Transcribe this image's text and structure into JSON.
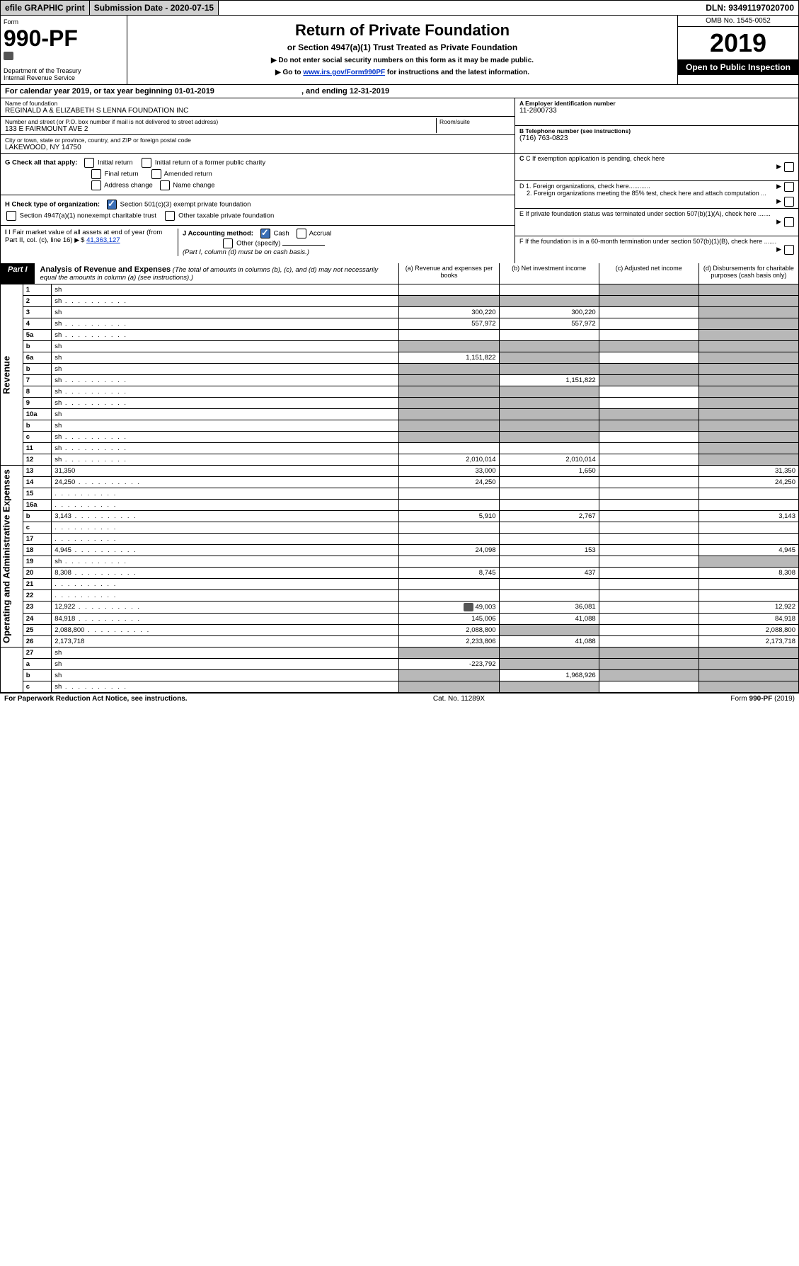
{
  "topbar": {
    "efile": "efile GRAPHIC print",
    "sub_label": "Submission Date - 2020-07-15",
    "dln": "DLN: 93491197020700"
  },
  "header": {
    "form_word": "Form",
    "form_no": "990-PF",
    "dept": "Department of the Treasury",
    "irs": "Internal Revenue Service",
    "title": "Return of Private Foundation",
    "subtitle": "or Section 4947(a)(1) Trust Treated as Private Foundation",
    "instr1": "▶ Do not enter social security numbers on this form as it may be made public.",
    "instr2_pre": "▶ Go to ",
    "instr2_link": "www.irs.gov/Form990PF",
    "instr2_post": " for instructions and the latest information.",
    "omb": "OMB No. 1545-0052",
    "year": "2019",
    "open": "Open to Public Inspection"
  },
  "calyear": {
    "pre": "For calendar year 2019, or tax year beginning ",
    "begin": "01-01-2019",
    "mid": " , and ending ",
    "end": "12-31-2019"
  },
  "id": {
    "name_label": "Name of foundation",
    "name": "REGINALD A & ELIZABETH S LENNA FOUNDATION INC",
    "addr_label": "Number and street (or P.O. box number if mail is not delivered to street address)",
    "room_label": "Room/suite",
    "addr": "133 E FAIRMOUNT AVE 2",
    "city_label": "City or town, state or province, country, and ZIP or foreign postal code",
    "city": "LAKEWOOD, NY  14750",
    "a_label": "A Employer identification number",
    "a_val": "11-2800733",
    "b_label": "B Telephone number (see instructions)",
    "b_val": "(716) 763-0823",
    "c_label": "C If exemption application is pending, check here",
    "d1": "D 1. Foreign organizations, check here............",
    "d2": "2. Foreign organizations meeting the 85% test, check here and attach computation ...",
    "e": "E   If private foundation status was terminated under section 507(b)(1)(A), check here .......",
    "f": "F   If the foundation is in a 60-month termination under section 507(b)(1)(B), check here .......",
    "g_label": "G Check all that apply:",
    "g_opts": [
      "Initial return",
      "Initial return of a former public charity",
      "Final return",
      "Amended return",
      "Address change",
      "Name change"
    ],
    "h_label": "H Check type of organization:",
    "h_opts": [
      "Section 501(c)(3) exempt private foundation",
      "Section 4947(a)(1) nonexempt charitable trust",
      "Other taxable private foundation"
    ],
    "i_label": "I Fair market value of all assets at end of year (from Part II, col. (c), line 16)",
    "i_val": "41,363,127",
    "j_label": "J Accounting method:",
    "j_opts": [
      "Cash",
      "Accrual",
      "Other (specify)"
    ],
    "j_note": "(Part I, column (d) must be on cash basis.)"
  },
  "part1": {
    "tag": "Part I",
    "title": "Analysis of Revenue and Expenses",
    "note": "(The total of amounts in columns (b), (c), and (d) may not necessarily equal the amounts in column (a) (see instructions).)",
    "cols": {
      "a": "(a)    Revenue and expenses per books",
      "b": "(b)   Net investment income",
      "c": "(c)   Adjusted net income",
      "d": "(d)   Disbursements for charitable purposes (cash basis only)"
    }
  },
  "rows": [
    {
      "sec": "rev",
      "n": "1",
      "d": "sh",
      "a": "",
      "b": "",
      "c": "sh"
    },
    {
      "sec": "rev",
      "n": "2",
      "d": "sh",
      "a": "sh",
      "b": "sh",
      "c": "sh",
      "dots": true
    },
    {
      "sec": "rev",
      "n": "3",
      "d": "sh",
      "a": "300,220",
      "b": "300,220",
      "c": ""
    },
    {
      "sec": "rev",
      "n": "4",
      "d": "sh",
      "a": "557,972",
      "b": "557,972",
      "c": "",
      "dots": true
    },
    {
      "sec": "rev",
      "n": "5a",
      "d": "sh",
      "a": "",
      "b": "",
      "c": "",
      "dots": true
    },
    {
      "sec": "rev",
      "n": "b",
      "d": "sh",
      "a": "sh",
      "b": "sh",
      "c": "sh"
    },
    {
      "sec": "rev",
      "n": "6a",
      "d": "sh",
      "a": "1,151,822",
      "b": "sh",
      "c": ""
    },
    {
      "sec": "rev",
      "n": "b",
      "d": "sh",
      "a": "sh",
      "b": "sh",
      "c": "sh"
    },
    {
      "sec": "rev",
      "n": "7",
      "d": "sh",
      "a": "sh",
      "b": "1,151,822",
      "c": "sh",
      "dots": true
    },
    {
      "sec": "rev",
      "n": "8",
      "d": "sh",
      "a": "sh",
      "b": "sh",
      "c": "",
      "dots": true
    },
    {
      "sec": "rev",
      "n": "9",
      "d": "sh",
      "a": "sh",
      "b": "sh",
      "c": "",
      "dots": true
    },
    {
      "sec": "rev",
      "n": "10a",
      "d": "sh",
      "a": "sh",
      "b": "sh",
      "c": "sh"
    },
    {
      "sec": "rev",
      "n": "b",
      "d": "sh",
      "a": "sh",
      "b": "sh",
      "c": "sh"
    },
    {
      "sec": "rev",
      "n": "c",
      "d": "sh",
      "a": "sh",
      "b": "sh",
      "c": "",
      "dots": true
    },
    {
      "sec": "rev",
      "n": "11",
      "d": "sh",
      "a": "",
      "b": "",
      "c": "",
      "dots": true
    },
    {
      "sec": "rev",
      "n": "12",
      "d": "sh",
      "a": "2,010,014",
      "b": "2,010,014",
      "c": "",
      "dots": true
    },
    {
      "sec": "exp",
      "n": "13",
      "d": "31,350",
      "a": "33,000",
      "b": "1,650",
      "c": ""
    },
    {
      "sec": "exp",
      "n": "14",
      "d": "24,250",
      "a": "24,250",
      "b": "",
      "c": "",
      "dots": true
    },
    {
      "sec": "exp",
      "n": "15",
      "d": "",
      "a": "",
      "b": "",
      "c": "",
      "dots": true
    },
    {
      "sec": "exp",
      "n": "16a",
      "d": "",
      "a": "",
      "b": "",
      "c": "",
      "dots": true
    },
    {
      "sec": "exp",
      "n": "b",
      "d": "3,143",
      "a": "5,910",
      "b": "2,767",
      "c": "",
      "dots": true
    },
    {
      "sec": "exp",
      "n": "c",
      "d": "",
      "a": "",
      "b": "",
      "c": "",
      "dots": true
    },
    {
      "sec": "exp",
      "n": "17",
      "d": "",
      "a": "",
      "b": "",
      "c": "",
      "dots": true
    },
    {
      "sec": "exp",
      "n": "18",
      "d": "4,945",
      "a": "24,098",
      "b": "153",
      "c": "",
      "dots": true
    },
    {
      "sec": "exp",
      "n": "19",
      "d": "sh",
      "a": "",
      "b": "",
      "c": "",
      "dots": true
    },
    {
      "sec": "exp",
      "n": "20",
      "d": "8,308",
      "a": "8,745",
      "b": "437",
      "c": "",
      "dots": true
    },
    {
      "sec": "exp",
      "n": "21",
      "d": "",
      "a": "",
      "b": "",
      "c": "",
      "dots": true
    },
    {
      "sec": "exp",
      "n": "22",
      "d": "",
      "a": "",
      "b": "",
      "c": "",
      "dots": true
    },
    {
      "sec": "exp",
      "n": "23",
      "d": "12,922",
      "a": "49,003",
      "b": "36,081",
      "c": "",
      "dots": true,
      "icon": true
    },
    {
      "sec": "exp",
      "n": "24",
      "d": "84,918",
      "a": "145,006",
      "b": "41,088",
      "c": "",
      "dots": true
    },
    {
      "sec": "exp",
      "n": "25",
      "d": "2,088,800",
      "a": "2,088,800",
      "b": "sh",
      "c": "",
      "dots": true
    },
    {
      "sec": "exp",
      "n": "26",
      "d": "2,173,718",
      "a": "2,233,806",
      "b": "41,088",
      "c": ""
    },
    {
      "sec": "net",
      "n": "27",
      "d": "sh",
      "a": "sh",
      "b": "sh",
      "c": "sh"
    },
    {
      "sec": "net",
      "n": "a",
      "d": "sh",
      "a": "-223,792",
      "b": "sh",
      "c": "sh"
    },
    {
      "sec": "net",
      "n": "b",
      "d": "sh",
      "a": "sh",
      "b": "1,968,926",
      "c": "sh"
    },
    {
      "sec": "net",
      "n": "c",
      "d": "sh",
      "a": "sh",
      "b": "sh",
      "c": "",
      "dots": true
    }
  ],
  "vlabels": {
    "rev": "Revenue",
    "exp": "Operating and Administrative Expenses"
  },
  "footer": {
    "left": "For Paperwork Reduction Act Notice, see instructions.",
    "mid": "Cat. No. 11289X",
    "right": "Form 990-PF (2019)"
  }
}
